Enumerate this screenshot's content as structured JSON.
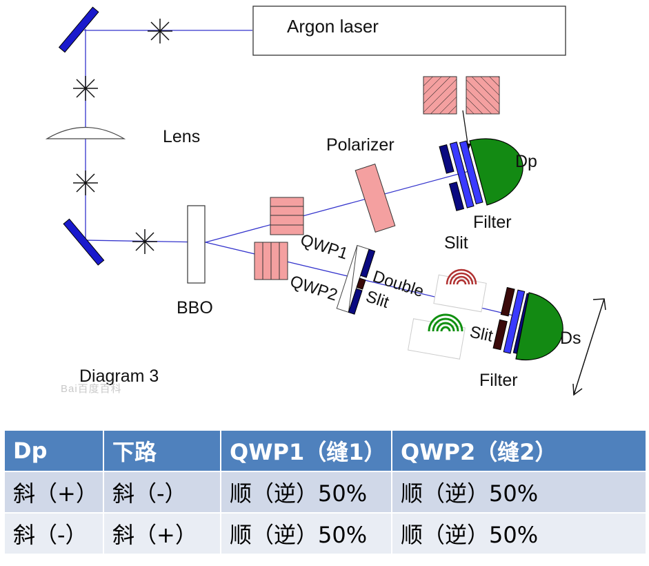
{
  "diagram": {
    "labels": {
      "laser": "Argon laser",
      "lens": "Lens",
      "polarizer": "Polarizer",
      "dp": "Dp",
      "filter_top": "Filter",
      "slit_top": "Slit",
      "qwp1": "QWP1",
      "qwp2": "QWP2",
      "double": "Double",
      "slit_mid": "Slit",
      "bbo": "BBO",
      "slit_bottom": "Slit",
      "ds": "Ds",
      "filter_bottom": "Filter",
      "caption": "Diagram 3"
    },
    "watermark": "Bai百度百科",
    "colors": {
      "beam": "#3333cc",
      "mirror": "#1a1acc",
      "pink": "#f4a0a0",
      "detector": "#138a13",
      "filter_dark": "#0a0a80",
      "filter_blue": "#3a3aff",
      "slit_dark": "#3a0a0a"
    }
  },
  "table": {
    "headers": [
      "Dp",
      "下路",
      "QWP1（缝1）",
      "QWP2（缝2）"
    ],
    "rows": [
      [
        "斜（+）",
        "斜（-）",
        "顺（逆）50%",
        "顺（逆）50%"
      ],
      [
        "斜（-）",
        "斜（+）",
        "顺（逆）50%",
        "顺（逆）50%"
      ]
    ]
  }
}
